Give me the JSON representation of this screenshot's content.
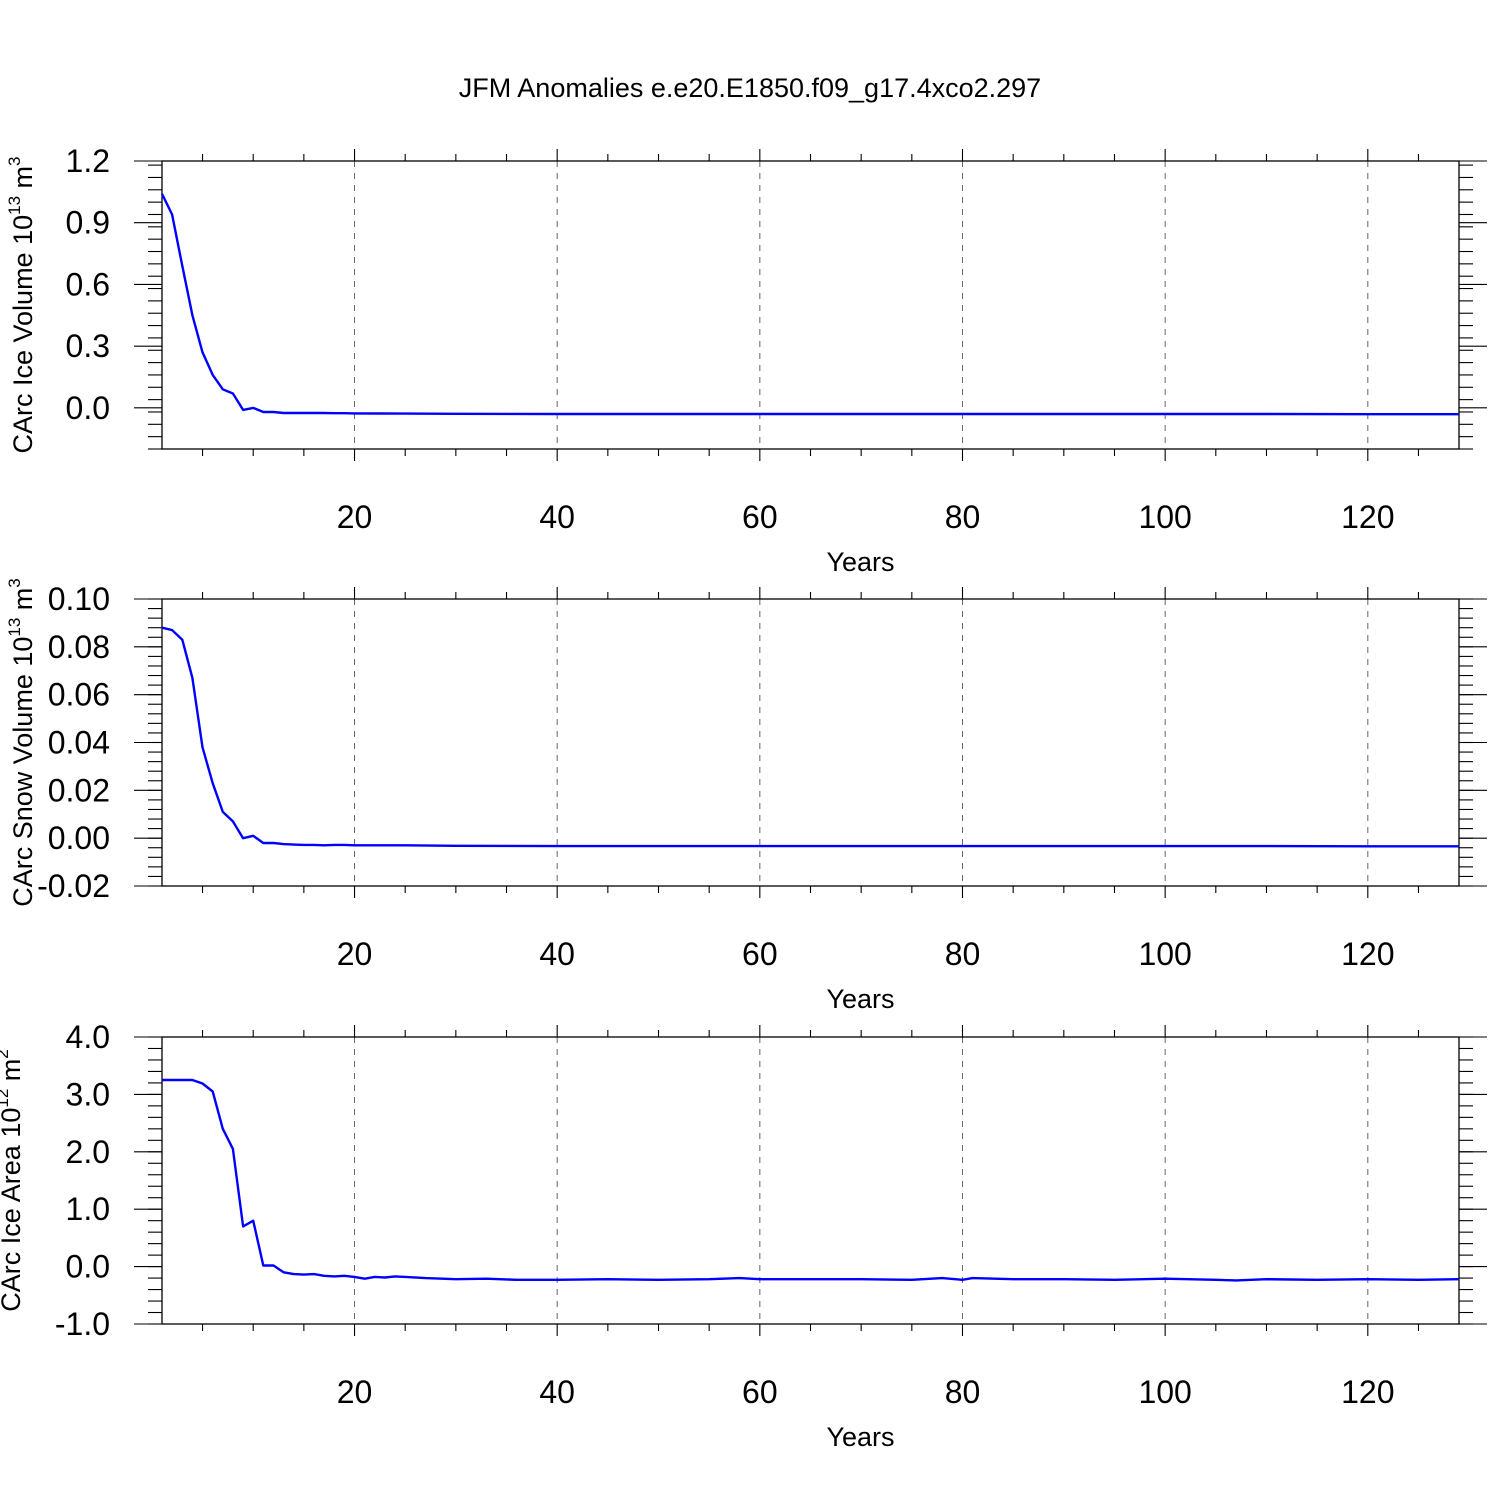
{
  "figure_title": "JFM Anomalies e.e20.E1850.f09_g17.4xco2.297",
  "chart_data": [
    {
      "type": "line",
      "ylabel": "CArc Ice Volume 10",
      "ylabel_exp": "13",
      "ylabel_unit": "m",
      "ylabel_unit_exp": "3",
      "xlabel": "Years",
      "xlim": [
        1,
        129
      ],
      "ylim": [
        -0.2,
        1.2
      ],
      "yticks": [
        0.0,
        0.3,
        0.6,
        0.9,
        1.2
      ],
      "ytick_labels": [
        "0.0",
        "0.3",
        "0.6",
        "0.9",
        "1.2"
      ],
      "yminor_step": 0.06,
      "xticks": [
        20,
        40,
        60,
        80,
        100,
        120
      ],
      "xtick_labels": [
        "20",
        "40",
        "60",
        "80",
        "100",
        "120"
      ],
      "grid": "x-dashed",
      "series": [
        {
          "color": "#0000ff",
          "x": [
            1,
            2,
            3,
            4,
            5,
            6,
            7,
            8,
            9,
            10,
            11,
            12,
            13,
            14,
            15,
            16,
            17,
            18,
            19,
            20,
            25,
            30,
            40,
            50,
            60,
            70,
            80,
            90,
            100,
            110,
            120,
            129
          ],
          "values": [
            1.04,
            0.94,
            0.69,
            0.45,
            0.27,
            0.16,
            0.09,
            0.07,
            -0.01,
            0.0,
            -0.02,
            -0.02,
            -0.025,
            -0.025,
            -0.025,
            -0.025,
            -0.025,
            -0.026,
            -0.026,
            -0.027,
            -0.028,
            -0.029,
            -0.03,
            -0.03,
            -0.03,
            -0.03,
            -0.03,
            -0.03,
            -0.03,
            -0.03,
            -0.031,
            -0.031
          ]
        }
      ]
    },
    {
      "type": "line",
      "ylabel": "CArc Snow Volume 10",
      "ylabel_exp": "13",
      "ylabel_unit": "m",
      "ylabel_unit_exp": "3",
      "xlabel": "Years",
      "xlim": [
        1,
        129
      ],
      "ylim": [
        -0.02,
        0.1
      ],
      "yticks": [
        -0.02,
        0.0,
        0.02,
        0.04,
        0.06,
        0.08,
        0.1
      ],
      "ytick_labels": [
        "-0.02",
        "0.00",
        "0.02",
        "0.04",
        "0.06",
        "0.08",
        "0.10"
      ],
      "yminor_step": 0.004,
      "xticks": [
        20,
        40,
        60,
        80,
        100,
        120
      ],
      "xtick_labels": [
        "20",
        "40",
        "60",
        "80",
        "100",
        "120"
      ],
      "grid": "x-dashed",
      "series": [
        {
          "color": "#0000ff",
          "x": [
            1,
            2,
            3,
            4,
            5,
            6,
            7,
            8,
            9,
            10,
            11,
            12,
            13,
            14,
            15,
            16,
            17,
            18,
            19,
            20,
            25,
            30,
            40,
            50,
            60,
            70,
            80,
            90,
            100,
            110,
            120,
            129
          ],
          "values": [
            0.088,
            0.087,
            0.083,
            0.067,
            0.038,
            0.023,
            0.011,
            0.007,
            0.0,
            0.001,
            -0.002,
            -0.002,
            -0.0025,
            -0.0027,
            -0.0028,
            -0.0028,
            -0.003,
            -0.0028,
            -0.0028,
            -0.003,
            -0.003,
            -0.0032,
            -0.0033,
            -0.0033,
            -0.0033,
            -0.0033,
            -0.0033,
            -0.0033,
            -0.0033,
            -0.0033,
            -0.0034,
            -0.0034
          ]
        }
      ]
    },
    {
      "type": "line",
      "ylabel": "CArc Ice Area 10",
      "ylabel_exp": "12",
      "ylabel_unit": "m",
      "ylabel_unit_exp": "2",
      "xlabel": "Years",
      "xlim": [
        1,
        129
      ],
      "ylim": [
        -1.0,
        4.0
      ],
      "yticks": [
        -1.0,
        0.0,
        1.0,
        2.0,
        3.0,
        4.0
      ],
      "ytick_labels": [
        "-1.0",
        "0.0",
        "1.0",
        "2.0",
        "3.0",
        "4.0"
      ],
      "yminor_step": 0.2,
      "xticks": [
        20,
        40,
        60,
        80,
        100,
        120
      ],
      "xtick_labels": [
        "20",
        "40",
        "60",
        "80",
        "100",
        "120"
      ],
      "grid": "x-dashed",
      "series": [
        {
          "color": "#0000ff",
          "x": [
            1,
            2,
            3,
            4,
            5,
            6,
            7,
            8,
            9,
            10,
            11,
            12,
            13,
            14,
            15,
            16,
            17,
            18,
            19,
            20,
            21,
            22,
            23,
            24,
            25,
            27,
            30,
            33,
            36,
            40,
            45,
            50,
            55,
            58,
            60,
            65,
            70,
            75,
            78,
            80,
            81,
            85,
            90,
            95,
            100,
            105,
            107,
            110,
            115,
            120,
            125,
            129
          ],
          "values": [
            3.25,
            3.25,
            3.25,
            3.25,
            3.19,
            3.05,
            2.4,
            2.05,
            0.7,
            0.8,
            0.02,
            0.02,
            -0.1,
            -0.13,
            -0.14,
            -0.13,
            -0.16,
            -0.17,
            -0.16,
            -0.18,
            -0.21,
            -0.18,
            -0.19,
            -0.17,
            -0.18,
            -0.2,
            -0.22,
            -0.21,
            -0.23,
            -0.23,
            -0.22,
            -0.23,
            -0.22,
            -0.2,
            -0.22,
            -0.22,
            -0.22,
            -0.23,
            -0.2,
            -0.23,
            -0.2,
            -0.22,
            -0.22,
            -0.23,
            -0.21,
            -0.23,
            -0.24,
            -0.22,
            -0.23,
            -0.22,
            -0.23,
            -0.22
          ]
        }
      ]
    }
  ]
}
